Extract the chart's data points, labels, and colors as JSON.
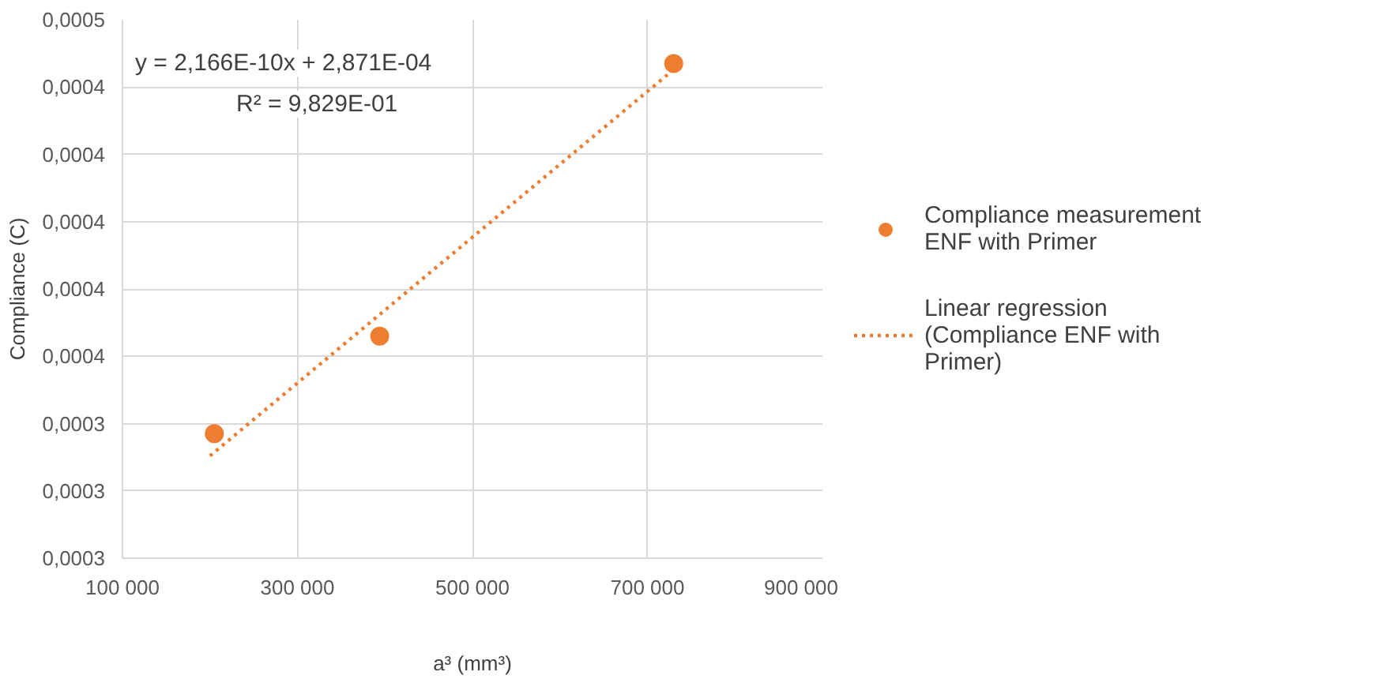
{
  "chart_data": {
    "type": "scatter",
    "xlabel": "a³ (mm³)",
    "ylabel": "Compliance (C)",
    "series": [
      {
        "name": "Compliance measurement ENF with Primer",
        "marker": "circle",
        "color": "#ed7d31",
        "x": [
          205000,
          394000,
          730000
        ],
        "values": [
          0.000337,
          0.000366,
          0.000447
        ]
      },
      {
        "name": "Linear regression (Compliance ENF with Primer)",
        "type": "line",
        "line_style": "dotted",
        "color": "#ed7d31",
        "x": [
          200000,
          730000
        ],
        "values": [
          0.0003304,
          0.0004452
        ]
      }
    ],
    "annotations": [
      "y = 2,166E-10x + 2,871E-04",
      "R² = 9,829E-01"
    ],
    "xlim": [
      100000,
      900000
    ],
    "xticks": [
      {
        "value": 100000,
        "label": "100 000"
      },
      {
        "value": 300000,
        "label": "300 000"
      },
      {
        "value": 500000,
        "label": "500 000"
      },
      {
        "value": 700000,
        "label": "700 000"
      },
      {
        "value": 900000,
        "label": "900 000"
      }
    ],
    "ylim": [
      0.0003,
      0.00046
    ],
    "yticks": [
      {
        "value": 0.0003,
        "label": "0,0003"
      },
      {
        "value": 0.00032,
        "label": "0,0003"
      },
      {
        "value": 0.00034,
        "label": "0,0003"
      },
      {
        "value": 0.00036,
        "label": "0,0004"
      },
      {
        "value": 0.00038,
        "label": "0,0004"
      },
      {
        "value": 0.0004,
        "label": "0,0004"
      },
      {
        "value": 0.00042,
        "label": "0,0004"
      },
      {
        "value": 0.00044,
        "label": "0,0004"
      },
      {
        "value": 0.00046,
        "label": "0,0005"
      }
    ],
    "grid": true,
    "legend": "right"
  }
}
